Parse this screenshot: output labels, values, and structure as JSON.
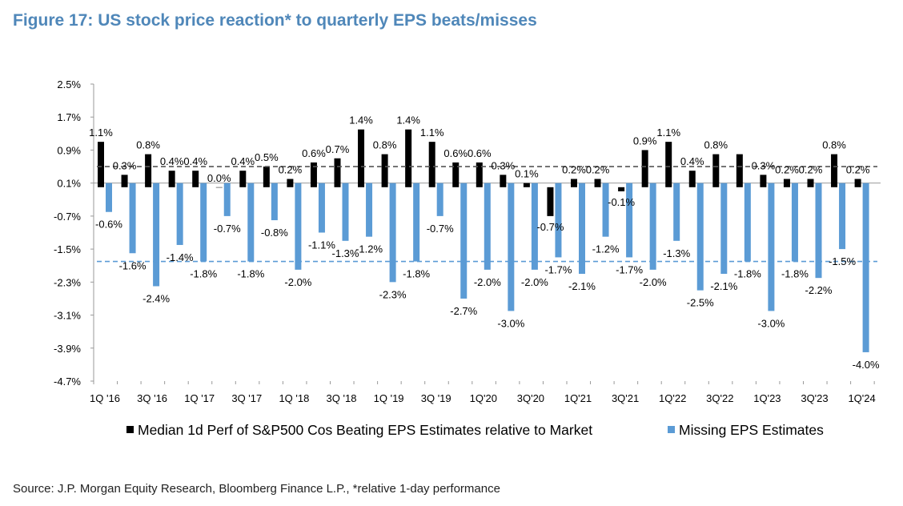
{
  "header": {
    "title": "Figure 17: US stock price reaction* to quarterly EPS beats/misses"
  },
  "footer": {
    "source": "Source: J.P. Morgan Equity Research, Bloomberg Finance L.P., *relative 1-day performance"
  },
  "colors": {
    "beat": "#000000",
    "miss": "#5b9bd5",
    "title": "#4f87b9"
  },
  "chart_data": {
    "type": "bar",
    "y_ticks": [
      "2.5%",
      "1.7%",
      "0.9%",
      "0.1%",
      "-0.7%",
      "-1.5%",
      "-2.3%",
      "-3.1%",
      "-3.9%",
      "-4.7%"
    ],
    "ylim": [
      -4.7,
      2.5
    ],
    "x_labels": [
      "1Q '16",
      "3Q '16",
      "1Q '17",
      "3Q '17",
      "1Q '18",
      "3Q '18",
      "1Q '19",
      "3Q '19",
      "1Q'20",
      "3Q'20",
      "1Q'21",
      "3Q'21",
      "1Q'22",
      "3Q'22",
      "1Q'23",
      "3Q'23",
      "1Q'24"
    ],
    "categories": [
      "1Q16",
      "2Q16",
      "3Q16",
      "4Q16",
      "1Q17",
      "2Q17",
      "3Q17",
      "4Q17",
      "1Q18",
      "2Q18",
      "3Q18",
      "4Q18",
      "1Q19",
      "2Q19",
      "3Q19",
      "4Q19",
      "1Q20",
      "2Q20",
      "3Q20",
      "4Q20",
      "1Q21",
      "2Q21",
      "3Q21",
      "4Q21",
      "1Q22",
      "2Q22",
      "3Q22",
      "4Q22",
      "1Q23",
      "2Q23",
      "3Q23",
      "4Q23",
      "1Q24"
    ],
    "series": [
      {
        "name": "Median 1d Perf of S&P500 Cos Beating EPS Estimates relative to Market",
        "values": [
          1.1,
          0.3,
          0.8,
          0.4,
          0.4,
          0.0,
          0.4,
          0.5,
          0.2,
          0.6,
          0.7,
          1.4,
          0.8,
          1.4,
          1.1,
          0.6,
          0.6,
          0.3,
          0.1,
          -0.7,
          0.2,
          0.2,
          -0.1,
          0.9,
          1.1,
          0.4,
          0.8,
          0.8,
          0.3,
          0.2,
          0.2,
          0.8,
          0.2
        ],
        "labels": [
          "1.1%",
          "0.3%",
          "0.8%",
          "0.4%",
          "0.4%",
          "0.0%",
          "0.4%",
          "0.5%",
          "0.2%",
          "0.6%",
          "0.7%",
          "1.4%",
          "0.8%",
          "1.4%",
          "1.1%",
          "0.6%",
          "0.6%",
          "0.3%",
          "0.1%",
          "-0.7%",
          "0.2%",
          "0.2%",
          "-0.1%",
          "0.9%",
          "1.1%",
          "0.4%",
          "0.8%",
          "",
          "0.3%",
          "0.2%",
          "0.2%",
          "0.8%",
          "0.2%"
        ],
        "average": 0.5
      },
      {
        "name": "Missing EPS Estimates",
        "values": [
          -0.6,
          -1.6,
          -2.4,
          -1.4,
          -1.8,
          -0.7,
          -1.8,
          -0.8,
          -2.0,
          -1.1,
          -1.3,
          -1.2,
          -2.3,
          -1.8,
          -0.7,
          -2.7,
          -2.0,
          -3.0,
          -2.0,
          -1.7,
          -2.1,
          -1.2,
          -1.7,
          -2.0,
          -1.3,
          -2.5,
          -2.1,
          -1.8,
          -3.0,
          -1.8,
          -2.2,
          -1.5,
          -4.0
        ],
        "labels": [
          "-0.6%",
          "-1.6%",
          "-2.4%",
          "-1.4%",
          "-1.8%",
          "-0.7%",
          "-1.8%",
          "-0.8%",
          "-2.0%",
          "-1.1%",
          "-1.3%",
          "-1.2%",
          "-2.3%",
          "-1.8%",
          "-0.7%",
          "-2.7%",
          "-2.0%",
          "-3.0%",
          "-2.0%",
          "-1.7%",
          "-2.1%",
          "-1.2%",
          "-1.7%",
          "-2.0%",
          "-1.3%",
          "-2.5%",
          "-2.1%",
          "-1.8%",
          "-3.0%",
          "-1.8%",
          "-2.2%",
          "-1.5%",
          "-4.0%"
        ],
        "average": -1.8
      }
    ],
    "legend_position": "bottom",
    "grid": false
  }
}
